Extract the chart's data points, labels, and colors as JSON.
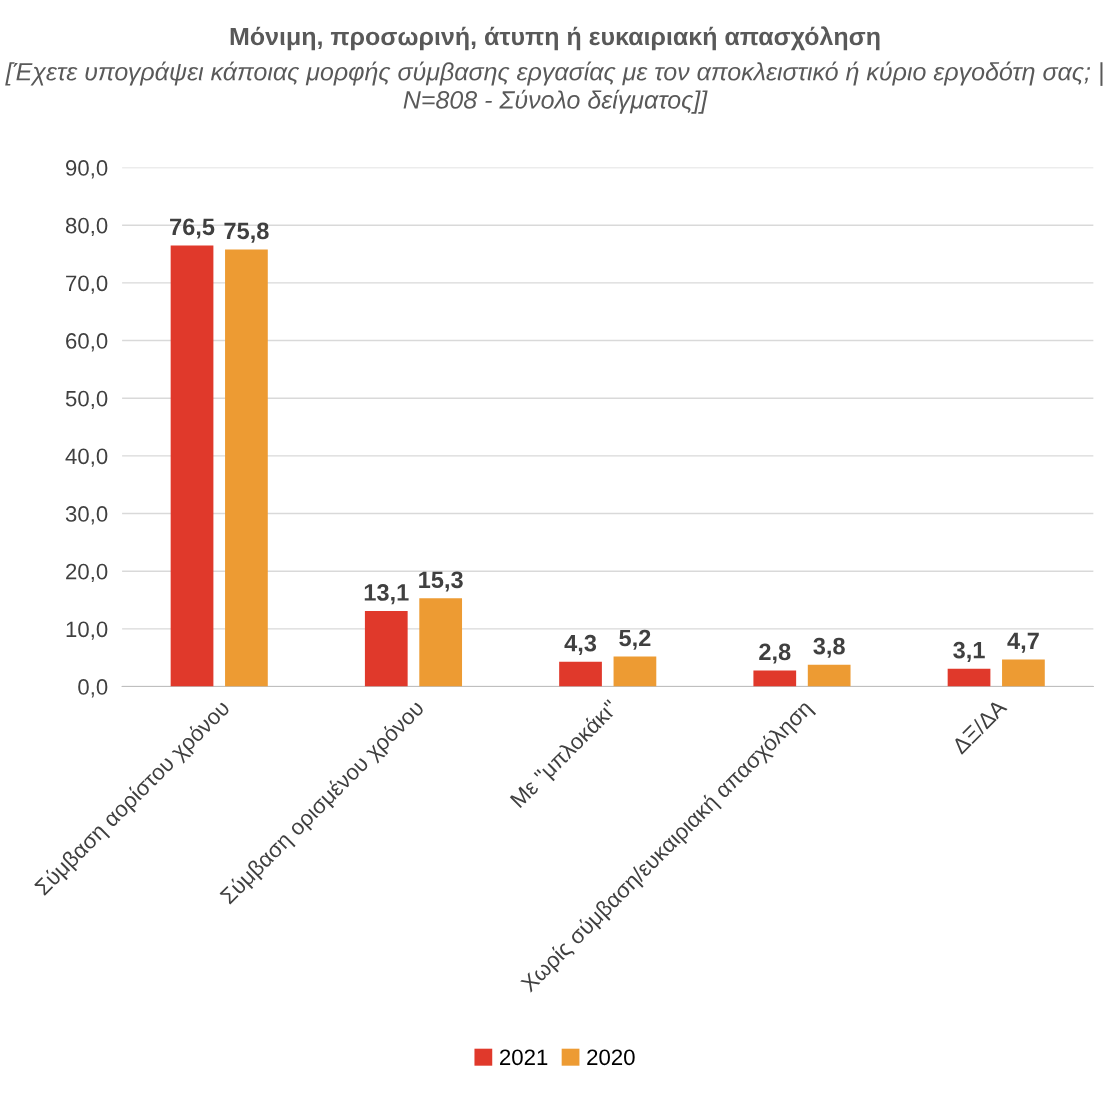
{
  "chart_data": {
    "type": "bar",
    "title": "Μόνιμη, προσωρινή, άτυπη ή ευκαιριακή απασχόληση",
    "subtitle": "[Έχετε υπογράψει κάποιας μορφής σύμβασης εργασίας με τον αποκλειστικό ή κύριο εργοδότη σας; | N=808 - Σύνολο δείγματος]]",
    "categories": [
      "Σύμβαση αορίστου χρόνου",
      "Σύμβαση ορισμένου χρόνου",
      "Με \"μπλοκάκι\"",
      "Χωρίς σύμβαση/ευκαιριακή απασχόληση",
      "ΔΞ/ΔΑ"
    ],
    "series": [
      {
        "name": "2021",
        "color": "#e0392b",
        "values": [
          76.5,
          13.1,
          4.3,
          2.8,
          3.1
        ],
        "value_labels": [
          "76,5",
          "13,1",
          "4,3",
          "2,8",
          "3,1"
        ]
      },
      {
        "name": "2020",
        "color": "#ed9b33",
        "values": [
          75.8,
          15.3,
          5.2,
          3.8,
          4.7
        ],
        "value_labels": [
          "75,8",
          "15,3",
          "5,2",
          "3,8",
          "4,7"
        ]
      }
    ],
    "ylim": [
      0,
      90
    ],
    "yticks": [
      {
        "value": 0,
        "label": "0,0"
      },
      {
        "value": 10,
        "label": "10,0"
      },
      {
        "value": 20,
        "label": "20,0"
      },
      {
        "value": 30,
        "label": "30,0"
      },
      {
        "value": 40,
        "label": "40,0"
      },
      {
        "value": 50,
        "label": "50,0"
      },
      {
        "value": 60,
        "label": "60,0"
      },
      {
        "value": 70,
        "label": "70,0"
      },
      {
        "value": 80,
        "label": "80,0"
      },
      {
        "value": 90,
        "label": "90,0"
      }
    ],
    "grid": "y",
    "legend": "bottom"
  }
}
